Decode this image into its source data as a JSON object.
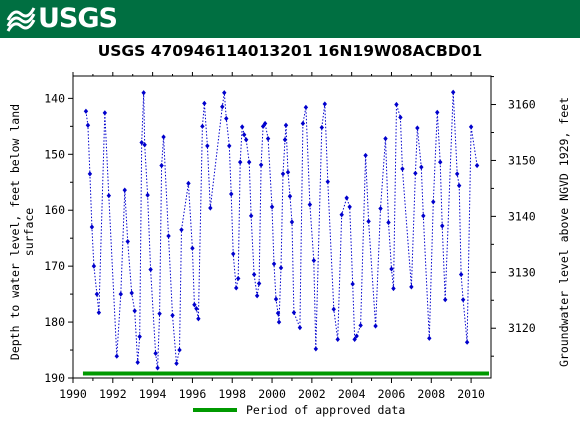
{
  "header": {
    "logo_text": "USGS",
    "brand_color": "#006f41"
  },
  "chart_data": {
    "type": "scatter",
    "title": "USGS 470946114013201 16N19W08ACBD01",
    "ylabel_left": [
      "Depth to water level, feet below land",
      "surface"
    ],
    "ylabel_right": "Groundwater level above NGVD 1929, feet",
    "xlim": [
      1990,
      2011
    ],
    "ylim_left": [
      190,
      136
    ],
    "ylim_right": [
      3111.1,
      3165.1
    ],
    "x_ticks": [
      1990,
      1992,
      1994,
      1996,
      1998,
      2000,
      2002,
      2004,
      2006,
      2008,
      2010
    ],
    "y_ticks_left": [
      140,
      150,
      160,
      170,
      180,
      190
    ],
    "y_ticks_right": [
      3120,
      3130,
      3140,
      3150,
      3160
    ],
    "grid": false,
    "series_color": "#0000cc",
    "approved_color": "#009900",
    "approved_period": [
      1990.5,
      2010.9
    ],
    "legend": {
      "label": "Period of approved data",
      "placement": "bottom-center"
    },
    "points": [
      [
        1990.65,
        142.3
      ],
      [
        1990.75,
        144.8
      ],
      [
        1990.85,
        153.5
      ],
      [
        1990.95,
        163
      ],
      [
        1991.05,
        170
      ],
      [
        1991.2,
        175
      ],
      [
        1991.3,
        178.3
      ],
      [
        1991.6,
        142.6
      ],
      [
        1991.8,
        157.4
      ],
      [
        1992.2,
        186.1
      ],
      [
        1992.4,
        175
      ],
      [
        1992.6,
        156.4
      ],
      [
        1992.75,
        165.6
      ],
      [
        1992.95,
        174.8
      ],
      [
        1993.1,
        178
      ],
      [
        1993.25,
        187.2
      ],
      [
        1993.35,
        182.6
      ],
      [
        1993.45,
        147.9
      ],
      [
        1993.55,
        139
      ],
      [
        1993.6,
        148.3
      ],
      [
        1993.75,
        157.3
      ],
      [
        1993.9,
        170.6
      ],
      [
        1994.15,
        185.6
      ],
      [
        1994.25,
        188.2
      ],
      [
        1994.35,
        178.5
      ],
      [
        1994.45,
        152
      ],
      [
        1994.55,
        146.9
      ],
      [
        1994.8,
        164.6
      ],
      [
        1995.0,
        178.8
      ],
      [
        1995.2,
        187.4
      ],
      [
        1995.35,
        185
      ],
      [
        1995.45,
        163.5
      ],
      [
        1995.8,
        155.2
      ],
      [
        1996.0,
        166.8
      ],
      [
        1996.1,
        176.9
      ],
      [
        1996.2,
        177.6
      ],
      [
        1996.3,
        179.4
      ],
      [
        1996.5,
        145
      ],
      [
        1996.6,
        140.9
      ],
      [
        1996.75,
        148.5
      ],
      [
        1996.9,
        159.6
      ],
      [
        1997.5,
        141.5
      ],
      [
        1997.6,
        139
      ],
      [
        1997.7,
        143.6
      ],
      [
        1997.85,
        148.5
      ],
      [
        1997.95,
        157.1
      ],
      [
        1998.05,
        167.8
      ],
      [
        1998.2,
        173.9
      ],
      [
        1998.3,
        172.2
      ],
      [
        1998.4,
        151.4
      ],
      [
        1998.5,
        145.1
      ],
      [
        1998.6,
        146.5
      ],
      [
        1998.7,
        147.4
      ],
      [
        1998.85,
        151.4
      ],
      [
        1998.95,
        161
      ],
      [
        1999.1,
        171.5
      ],
      [
        1999.25,
        175.3
      ],
      [
        1999.35,
        173.1
      ],
      [
        1999.45,
        151.9
      ],
      [
        1999.55,
        145
      ],
      [
        1999.65,
        144.5
      ],
      [
        1999.8,
        147.2
      ],
      [
        2000.0,
        159.4
      ],
      [
        2000.1,
        169.6
      ],
      [
        2000.2,
        175.9
      ],
      [
        2000.3,
        178.4
      ],
      [
        2000.35,
        180
      ],
      [
        2000.45,
        170.3
      ],
      [
        2000.55,
        153.5
      ],
      [
        2000.65,
        147.4
      ],
      [
        2000.7,
        144.8
      ],
      [
        2000.8,
        153.2
      ],
      [
        2000.9,
        157.5
      ],
      [
        2001.0,
        162.1
      ],
      [
        2001.1,
        178.3
      ],
      [
        2001.4,
        181
      ],
      [
        2001.55,
        144.5
      ],
      [
        2001.7,
        141.6
      ],
      [
        2001.9,
        159
      ],
      [
        2002.1,
        169
      ],
      [
        2002.2,
        184.8
      ],
      [
        2002.5,
        145.2
      ],
      [
        2002.65,
        141
      ],
      [
        2002.8,
        154.9
      ],
      [
        2003.1,
        177.7
      ],
      [
        2003.3,
        183.1
      ],
      [
        2003.5,
        160.8
      ],
      [
        2003.75,
        157.8
      ],
      [
        2003.9,
        159.4
      ],
      [
        2004.05,
        173.2
      ],
      [
        2004.15,
        183.1
      ],
      [
        2004.25,
        182.5
      ],
      [
        2004.45,
        180.6
      ],
      [
        2004.7,
        150.2
      ],
      [
        2004.85,
        162
      ],
      [
        2005.2,
        180.7
      ],
      [
        2005.45,
        159.7
      ],
      [
        2005.7,
        147.2
      ],
      [
        2005.85,
        162.2
      ],
      [
        2006.0,
        170.5
      ],
      [
        2006.1,
        174
      ],
      [
        2006.25,
        141.1
      ],
      [
        2006.45,
        143.4
      ],
      [
        2006.55,
        152.6
      ],
      [
        2007.0,
        173.7
      ],
      [
        2007.2,
        153.4
      ],
      [
        2007.3,
        145.3
      ],
      [
        2007.5,
        152.3
      ],
      [
        2007.6,
        161
      ],
      [
        2007.9,
        182.9
      ],
      [
        2008.1,
        158.5
      ],
      [
        2008.3,
        142.5
      ],
      [
        2008.45,
        151.4
      ],
      [
        2008.55,
        162.8
      ],
      [
        2008.7,
        176
      ],
      [
        2009.1,
        138.9
      ],
      [
        2009.3,
        153.5
      ],
      [
        2009.4,
        155.6
      ],
      [
        2009.5,
        171.5
      ],
      [
        2009.6,
        176
      ],
      [
        2009.8,
        183.6
      ],
      [
        2010.0,
        145.1
      ],
      [
        2010.3,
        152
      ]
    ]
  }
}
